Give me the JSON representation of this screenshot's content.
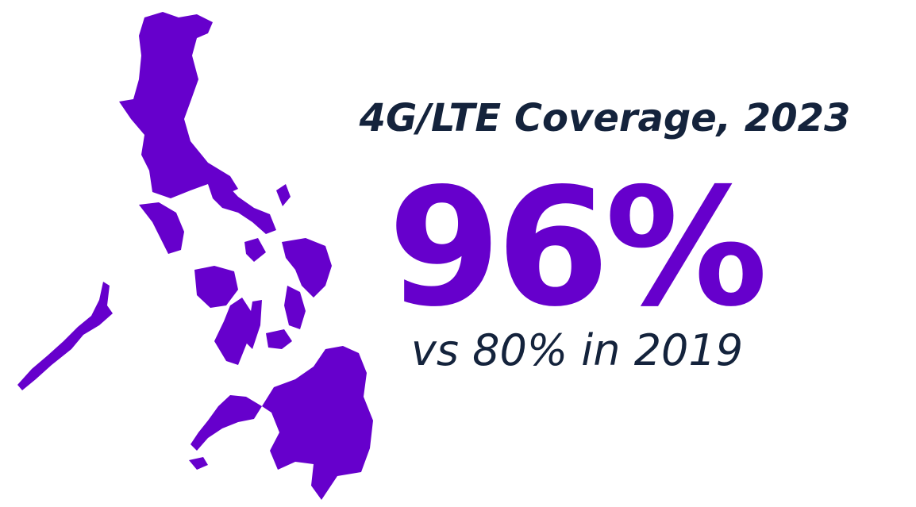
{
  "title": "4G/LTE Coverage, 2023",
  "stat": "96%",
  "comparison": "vs 80% in 2019"
}
